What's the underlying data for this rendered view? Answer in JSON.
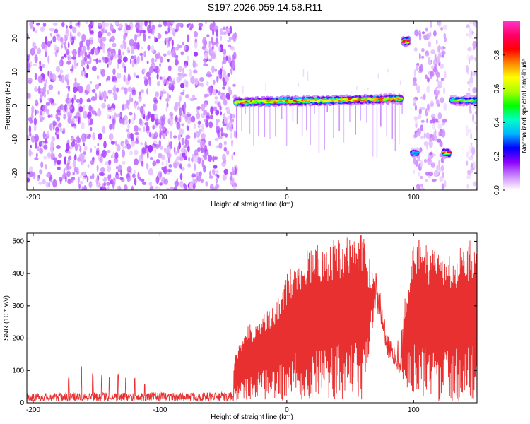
{
  "figure": {
    "title": "S197.2026.059.14.58.R11"
  },
  "chart_data": [
    {
      "type": "heatmap",
      "name": "spectrogram",
      "xlabel": "Height of straight line (km)",
      "ylabel": "Frequency (Hz)",
      "xlim": [
        -205,
        150
      ],
      "ylim": [
        -25,
        25
      ],
      "xticks": [
        -200,
        -100,
        0,
        100
      ],
      "yticks": [
        -20,
        -10,
        0,
        10,
        20
      ],
      "colorbar": {
        "label": "Normalized spectral amplitude",
        "range": [
          0,
          1
        ],
        "ticks": [
          "0.0",
          "0.2",
          "0.4",
          "0.6",
          "0.8"
        ],
        "colors": [
          "#ffffff",
          "#cc88ff",
          "#8a00ff",
          "#0000ff",
          "#00b4ff",
          "#00ffc8",
          "#00ff00",
          "#aaff00",
          "#ffff00",
          "#ff8800",
          "#ff0000",
          "#ff0066",
          "#ff33cc"
        ]
      },
      "regions": [
        {
          "kind": "noise",
          "x": [
            -205,
            -40
          ],
          "freq": [
            -25,
            25
          ],
          "amplitude": 0.12
        },
        {
          "kind": "noise",
          "x": [
            100,
            125
          ],
          "freq": [
            -25,
            25
          ],
          "amplitude": 0.09
        },
        {
          "kind": "noise",
          "x": [
            142,
            150
          ],
          "freq": [
            -25,
            25
          ],
          "amplitude": 0.06
        }
      ],
      "tracks": [
        {
          "x": [
            -40,
            90
          ],
          "freq": [
            1.0,
            2.0
          ],
          "amplitude": 0.75
        },
        {
          "x": [
            92,
            96
          ],
          "freq": [
            19,
            19
          ],
          "amplitude": 0.9
        },
        {
          "x": [
            99,
            103
          ],
          "freq": [
            -14,
            -14
          ],
          "amplitude": 0.35
        },
        {
          "x": [
            124,
            128
          ],
          "freq": [
            -14,
            -14
          ],
          "amplitude": 0.8
        },
        {
          "x": [
            130,
            150
          ],
          "freq": [
            1.5,
            1.5
          ],
          "amplitude": 0.55
        }
      ]
    },
    {
      "type": "line",
      "name": "snr",
      "xlabel": "Height of straight line (km)",
      "ylabel": "SNR (10 * v/v)",
      "xlim": [
        -205,
        150
      ],
      "ylim": [
        0,
        525
      ],
      "xticks": [
        -200,
        -100,
        0,
        100
      ],
      "yticks": [
        0,
        100,
        200,
        300,
        400,
        500
      ],
      "color": "#e83030",
      "envelope": {
        "x": [
          -205,
          -180,
          -170,
          -160,
          -150,
          -140,
          -130,
          -120,
          -100,
          -80,
          -60,
          -45,
          -40,
          -30,
          -20,
          -10,
          0,
          10,
          20,
          30,
          40,
          50,
          60,
          70,
          80,
          85,
          90,
          100,
          110,
          120,
          130,
          140,
          150
        ],
        "max": [
          30,
          30,
          95,
          130,
          90,
          85,
          95,
          80,
          45,
          40,
          60,
          70,
          160,
          240,
          270,
          300,
          400,
          460,
          490,
          500,
          510,
          520,
          520,
          420,
          220,
          170,
          230,
          525,
          490,
          480,
          460,
          490,
          520
        ],
        "min": [
          5,
          5,
          5,
          5,
          5,
          5,
          5,
          5,
          5,
          5,
          5,
          5,
          5,
          5,
          5,
          5,
          5,
          5,
          5,
          5,
          5,
          5,
          5,
          300,
          130,
          115,
          80,
          5,
          5,
          5,
          5,
          5,
          5
        ]
      }
    }
  ]
}
